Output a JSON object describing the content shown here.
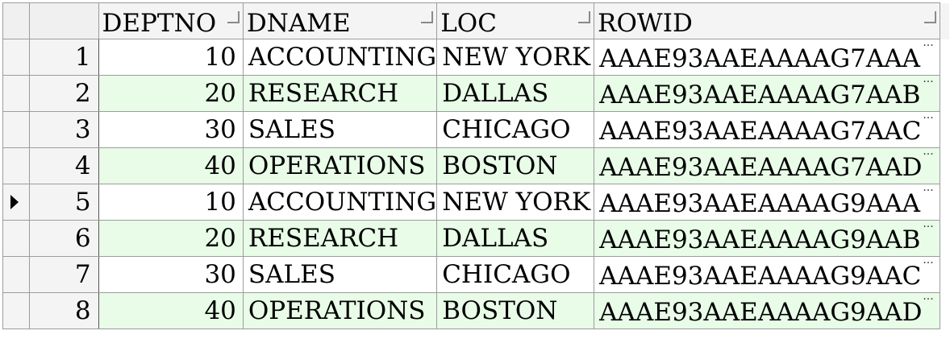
{
  "columns": [
    {
      "key": "deptno",
      "label": "DEPTNO"
    },
    {
      "key": "dname",
      "label": "DNAME"
    },
    {
      "key": "loc",
      "label": "LOC"
    },
    {
      "key": "rowid",
      "label": "ROWID"
    }
  ],
  "ellipsis": "···",
  "rows": [
    {
      "rownum": "1",
      "deptno": "10",
      "dname": "ACCOUNTING",
      "loc": "NEW YORK",
      "rowid": "AAAE93AAEAAAAG7AAA"
    },
    {
      "rownum": "2",
      "deptno": "20",
      "dname": "RESEARCH",
      "loc": "DALLAS",
      "rowid": "AAAE93AAEAAAAG7AAB"
    },
    {
      "rownum": "3",
      "deptno": "30",
      "dname": "SALES",
      "loc": "CHICAGO",
      "rowid": "AAAE93AAEAAAAG7AAC"
    },
    {
      "rownum": "4",
      "deptno": "40",
      "dname": "OPERATIONS",
      "loc": "BOSTON",
      "rowid": "AAAE93AAEAAAAG7AAD"
    },
    {
      "rownum": "5",
      "deptno": "10",
      "dname": "ACCOUNTING",
      "loc": "NEW YORK",
      "rowid": "AAAE93AAEAAAAG9AAA"
    },
    {
      "rownum": "6",
      "deptno": "20",
      "dname": "RESEARCH",
      "loc": "DALLAS",
      "rowid": "AAAE93AAEAAAAG9AAB"
    },
    {
      "rownum": "7",
      "deptno": "30",
      "dname": "SALES",
      "loc": "CHICAGO",
      "rowid": "AAAE93AAEAAAAG9AAC"
    },
    {
      "rownum": "8",
      "deptno": "40",
      "dname": "OPERATIONS",
      "loc": "BOSTON",
      "rowid": "AAAE93AAEAAAAG9AAD"
    }
  ],
  "current_row_index": 4
}
